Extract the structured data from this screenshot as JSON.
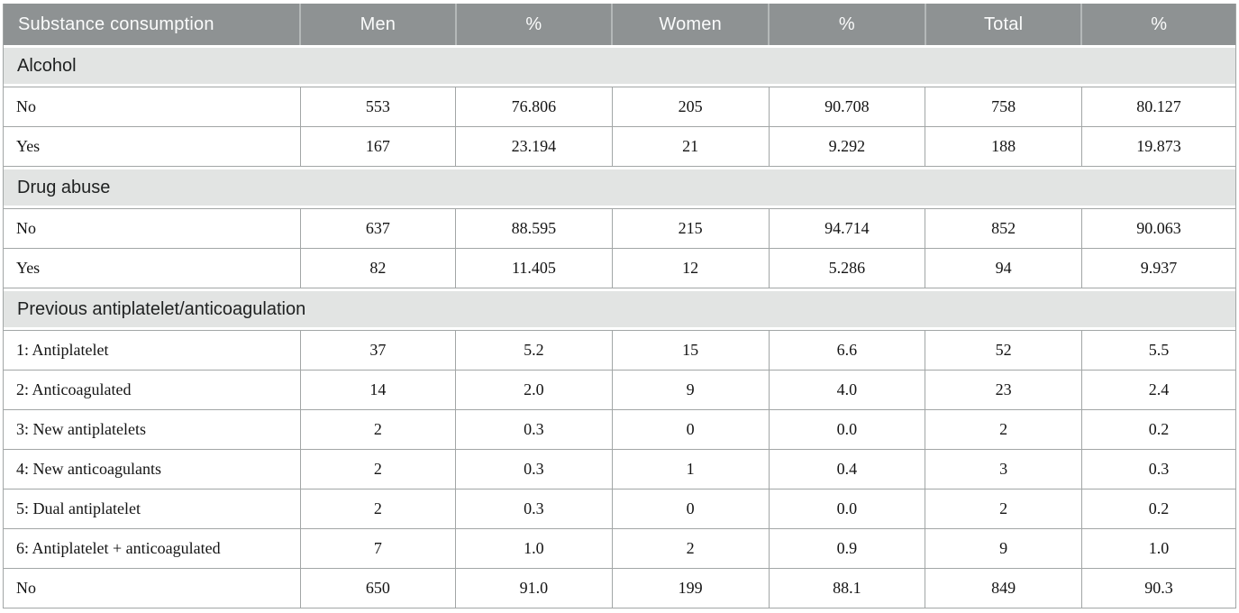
{
  "table": {
    "columns": [
      "Substance consumption",
      "Men",
      "%",
      "Women",
      "%",
      "Total",
      "%"
    ],
    "sections": [
      {
        "title": "Alcohol",
        "rows": [
          [
            "No",
            "553",
            "76.806",
            "205",
            "90.708",
            "758",
            "80.127"
          ],
          [
            "Yes",
            "167",
            "23.194",
            "21",
            "9.292",
            "188",
            "19.873"
          ]
        ]
      },
      {
        "title": "Drug abuse",
        "rows": [
          [
            "No",
            "637",
            "88.595",
            "215",
            "94.714",
            "852",
            "90.063"
          ],
          [
            "Yes",
            "82",
            "11.405",
            "12",
            "5.286",
            "94",
            "9.937"
          ]
        ]
      },
      {
        "title": "Previous antiplatelet/anticoagulation",
        "rows": [
          [
            "1: Antiplatelet",
            "37",
            "5.2",
            "15",
            "6.6",
            "52",
            "5.5"
          ],
          [
            "2: Anticoagulated",
            "14",
            "2.0",
            "9",
            "4.0",
            "23",
            "2.4"
          ],
          [
            "3: New antiplatelets",
            "2",
            "0.3",
            "0",
            "0.0",
            "2",
            "0.2"
          ],
          [
            "4: New anticoagulants",
            "2",
            "0.3",
            "1",
            "0.4",
            "3",
            "0.3"
          ],
          [
            "5: Dual antiplatelet",
            "2",
            "0.3",
            "0",
            "0.0",
            "2",
            "0.2"
          ],
          [
            "6: Antiplatelet + anticoagulated",
            "7",
            "1.0",
            "2",
            "0.9",
            "9",
            "1.0"
          ],
          [
            "No",
            "650",
            "91.0",
            "199",
            "88.1",
            "849",
            "90.3"
          ]
        ]
      }
    ],
    "colors": {
      "header_bg": "#8e9293",
      "header_text": "#fafbfb",
      "section_bg": "#e2e4e3",
      "cell_border": "#a2a6a6",
      "data_text": "#141414"
    }
  }
}
